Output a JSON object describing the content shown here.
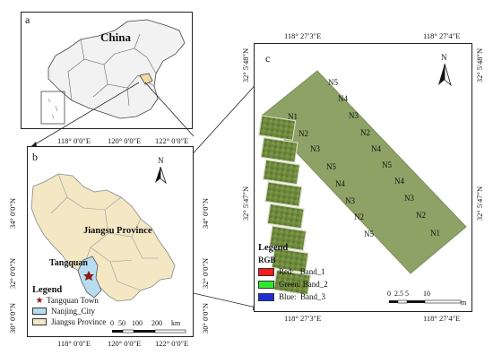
{
  "panel_a": {
    "letter": "a",
    "country_label": "China"
  },
  "panel_b": {
    "letter": "b",
    "top_coords": [
      "118° 0′0″E",
      "120° 0′0″E",
      "122° 0′0″E"
    ],
    "bottom_coords": [
      "118° 0′0″E",
      "120° 0′0″E",
      "122° 0′0″E"
    ],
    "left_coords": [
      "30° 0′0″N",
      "32° 0′0″N",
      "34° 0′0″N"
    ],
    "right_coords": [
      "30° 0′0″N",
      "32° 0′0″N",
      "34° 0′0″N"
    ],
    "province_label": "Jiangsu Province",
    "town_label": "Tangquan",
    "north_label": "N",
    "scale": {
      "ticks": [
        "0",
        "50",
        "100",
        "200"
      ],
      "unit": "km"
    },
    "legend": {
      "title": "Legend",
      "items": [
        {
          "symbol": "star",
          "label": "Tangquan Town",
          "color": "#8b1a1a"
        },
        {
          "symbol": "box",
          "label": "Nanjing_City",
          "color": "#b8dcf0"
        },
        {
          "symbol": "box",
          "label": "Jiangsu Province",
          "color": "#f3e7c4"
        }
      ]
    }
  },
  "panel_c": {
    "letter": "c",
    "top_coords": [
      "118° 27′3″E",
      "118° 27′4″E"
    ],
    "bottom_coords": [
      "118° 27′3″E",
      "118° 27′4″E"
    ],
    "left_coords": [
      "32° 5′47″N",
      "32° 5′48″N"
    ],
    "right_coords": [
      "32° 5′47″N",
      "32° 5′48″N"
    ],
    "north_label": "N",
    "plots_left": [
      "N1",
      "N2",
      "N3",
      "N5",
      "N4",
      "N3",
      "N2",
      "N5"
    ],
    "plots_right_top": "N5",
    "plots_right": [
      "N4",
      "N3",
      "N2",
      "N4",
      "N5",
      "N4",
      "N3",
      "N2",
      "N1"
    ],
    "legend": {
      "title": "Legend",
      "subtitle": "RGB",
      "items": [
        {
          "label": "Red:   Band_1",
          "color": "#ff1a1a"
        },
        {
          "label": "Green: Band_2",
          "color": "#2ee82e"
        },
        {
          "label": "Blue:  Band_3",
          "color": "#1f2fd6"
        }
      ]
    },
    "scale": {
      "ticks": [
        "0",
        "2.5",
        "5",
        "10"
      ],
      "unit": "m"
    }
  },
  "colors": {
    "province_fill": "#f3e7c4",
    "nanjing_fill": "#b8dcf0",
    "vegetation": "#6f8a3e",
    "highlight": "#d8b070"
  }
}
